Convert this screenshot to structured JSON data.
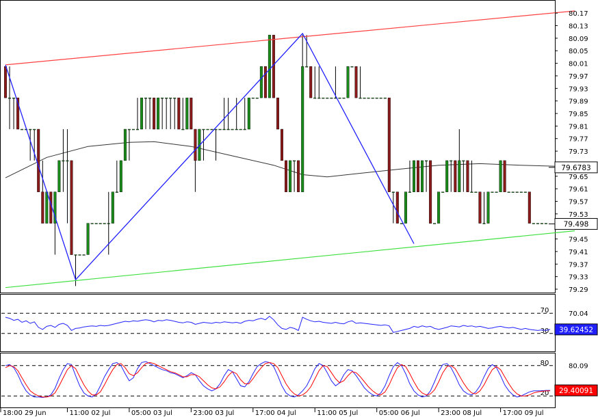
{
  "chart_data": {
    "type": "candlestick",
    "colors": {
      "bull": "#1a8a1a",
      "bear": "#8b1a1a",
      "wick": "#000000",
      "upper_channel": "#ff4040",
      "lower_channel": "#40e040",
      "zigzag": "#2020ff",
      "moving_average": "#333333",
      "rsi": "#2020ff",
      "stoch_k": "#2020ff",
      "stoch_d": "#ff0000"
    },
    "main_panel": {
      "ylim": [
        79.29,
        80.19
      ],
      "y_ticks": [
        "80.17",
        "80.13",
        "80.09",
        "80.05",
        "80.01",
        "79.97",
        "79.93",
        "79.89",
        "79.85",
        "79.81",
        "79.77",
        "79.73",
        "79.69",
        "79.65",
        "79.61",
        "79.57",
        "79.53",
        "79.49",
        "79.45",
        "79.41",
        "79.37",
        "79.33",
        "79.29"
      ],
      "price_labels": [
        {
          "label": "79.6783",
          "value": 79.6783,
          "style": "ma"
        },
        {
          "label": "79.498",
          "value": 79.498,
          "style": "last"
        }
      ],
      "upper_channel": [
        [
          0,
          80.005
        ],
        [
          138,
          80.177
        ]
      ],
      "lower_channel": [
        [
          0,
          79.295
        ],
        [
          138,
          79.476
        ]
      ],
      "zigzag": [
        [
          0,
          80.005
        ],
        [
          17,
          79.32
        ],
        [
          72,
          80.105
        ],
        [
          99,
          79.435
        ]
      ],
      "moving_average_points": [
        [
          0,
          79.645
        ],
        [
          10,
          79.71
        ],
        [
          20,
          79.745
        ],
        [
          30,
          79.758
        ],
        [
          36,
          79.76
        ],
        [
          45,
          79.745
        ],
        [
          55,
          79.715
        ],
        [
          65,
          79.685
        ],
        [
          72,
          79.655
        ],
        [
          78,
          79.648
        ],
        [
          85,
          79.658
        ],
        [
          95,
          79.672
        ],
        [
          105,
          79.685
        ],
        [
          115,
          79.69
        ],
        [
          125,
          79.685
        ],
        [
          138,
          79.68
        ]
      ],
      "candles": [
        [
          80.0,
          80.0,
          79.9,
          79.9
        ],
        [
          79.9,
          80.0,
          79.8,
          79.9
        ],
        [
          79.9,
          79.9,
          79.8,
          79.9
        ],
        [
          79.9,
          79.9,
          79.8,
          79.8
        ],
        [
          79.8,
          79.8,
          79.8,
          79.8
        ],
        [
          79.8,
          79.8,
          79.8,
          79.8
        ],
        [
          79.8,
          79.8,
          79.7,
          79.8
        ],
        [
          79.8,
          79.8,
          79.7,
          79.8
        ],
        [
          79.8,
          79.8,
          79.6,
          79.6
        ],
        [
          79.6,
          79.7,
          79.5,
          79.5
        ],
        [
          79.5,
          79.6,
          79.5,
          79.6
        ],
        [
          79.6,
          79.6,
          79.5,
          79.5
        ],
        [
          79.5,
          79.6,
          79.4,
          79.6
        ],
        [
          79.6,
          79.7,
          79.6,
          79.7
        ],
        [
          79.7,
          79.8,
          79.6,
          79.7
        ],
        [
          79.7,
          79.8,
          79.5,
          79.7
        ],
        [
          79.7,
          79.7,
          79.4,
          79.4
        ],
        [
          79.4,
          79.4,
          79.3,
          79.4
        ],
        [
          79.4,
          79.4,
          79.4,
          79.4
        ],
        [
          79.4,
          79.4,
          79.4,
          79.4
        ],
        [
          79.4,
          79.5,
          79.4,
          79.5
        ],
        [
          79.5,
          79.5,
          79.5,
          79.5
        ],
        [
          79.5,
          79.5,
          79.5,
          79.5
        ],
        [
          79.5,
          79.5,
          79.5,
          79.5
        ],
        [
          79.5,
          79.5,
          79.5,
          79.5
        ],
        [
          79.5,
          79.6,
          79.4,
          79.5
        ],
        [
          79.5,
          79.6,
          79.5,
          79.6
        ],
        [
          79.6,
          79.7,
          79.6,
          79.6
        ],
        [
          79.6,
          79.7,
          79.6,
          79.7
        ],
        [
          79.7,
          79.8,
          79.7,
          79.8
        ],
        [
          79.8,
          79.8,
          79.7,
          79.8
        ],
        [
          79.8,
          79.8,
          79.8,
          79.8
        ],
        [
          79.8,
          79.9,
          79.8,
          79.8
        ],
        [
          79.8,
          79.9,
          79.8,
          79.9
        ],
        [
          79.9,
          79.9,
          79.8,
          79.9
        ],
        [
          79.9,
          79.9,
          79.8,
          79.9
        ],
        [
          79.9,
          79.9,
          79.8,
          79.8
        ],
        [
          79.8,
          79.9,
          79.8,
          79.9
        ],
        [
          79.9,
          79.9,
          79.8,
          79.9
        ],
        [
          79.9,
          79.9,
          79.8,
          79.9
        ],
        [
          79.9,
          79.9,
          79.8,
          79.9
        ],
        [
          79.9,
          79.9,
          79.8,
          79.9
        ],
        [
          79.9,
          79.9,
          79.8,
          79.8
        ],
        [
          79.8,
          79.9,
          79.8,
          79.8
        ],
        [
          79.8,
          79.9,
          79.8,
          79.9
        ],
        [
          79.9,
          79.9,
          79.8,
          79.8
        ],
        [
          79.8,
          79.8,
          79.6,
          79.7
        ],
        [
          79.7,
          79.8,
          79.7,
          79.8
        ],
        [
          79.8,
          79.8,
          79.7,
          79.8
        ],
        [
          79.8,
          79.8,
          79.8,
          79.8
        ],
        [
          79.8,
          79.8,
          79.8,
          79.8
        ],
        [
          79.8,
          79.8,
          79.7,
          79.8
        ],
        [
          79.8,
          79.8,
          79.8,
          79.8
        ],
        [
          79.8,
          79.9,
          79.8,
          79.8
        ],
        [
          79.8,
          79.9,
          79.8,
          79.8
        ],
        [
          79.8,
          79.8,
          79.8,
          79.8
        ],
        [
          79.8,
          79.9,
          79.8,
          79.8
        ],
        [
          79.8,
          79.8,
          79.8,
          79.8
        ],
        [
          79.8,
          79.9,
          79.8,
          79.8
        ],
        [
          79.8,
          79.9,
          79.8,
          79.9
        ],
        [
          79.9,
          79.9,
          79.9,
          79.9
        ],
        [
          79.9,
          79.9,
          79.9,
          79.9
        ],
        [
          79.9,
          80.0,
          79.9,
          80.0
        ],
        [
          80.0,
          80.0,
          79.9,
          79.9
        ],
        [
          79.9,
          80.1,
          79.9,
          80.1
        ],
        [
          80.1,
          80.1,
          79.9,
          79.9
        ],
        [
          79.9,
          79.9,
          79.8,
          79.8
        ],
        [
          79.8,
          79.8,
          79.7,
          79.7
        ],
        [
          79.7,
          79.7,
          79.6,
          79.6
        ],
        [
          79.6,
          79.7,
          79.6,
          79.7
        ],
        [
          79.7,
          79.7,
          79.6,
          79.7
        ],
        [
          79.7,
          79.7,
          79.6,
          79.6
        ],
        [
          79.6,
          80.1,
          79.6,
          80.0
        ],
        [
          80.0,
          80.1,
          80.0,
          80.0
        ],
        [
          80.0,
          80.0,
          79.9,
          79.9
        ],
        [
          79.9,
          80.0,
          79.9,
          79.9
        ],
        [
          79.9,
          80.0,
          79.9,
          79.9
        ],
        [
          79.9,
          79.9,
          79.9,
          79.9
        ],
        [
          79.9,
          79.9,
          79.9,
          79.9
        ],
        [
          79.9,
          79.9,
          79.9,
          79.9
        ],
        [
          79.9,
          80.0,
          79.9,
          79.9
        ],
        [
          79.9,
          79.9,
          79.9,
          79.9
        ],
        [
          79.9,
          79.9,
          79.9,
          79.9
        ],
        [
          79.9,
          80.0,
          79.9,
          80.0
        ],
        [
          80.0,
          80.0,
          80.0,
          80.0
        ],
        [
          80.0,
          80.0,
          79.9,
          79.9
        ],
        [
          79.9,
          80.0,
          79.9,
          79.9
        ],
        [
          79.9,
          79.9,
          79.9,
          79.9
        ],
        [
          79.9,
          79.9,
          79.9,
          79.9
        ],
        [
          79.9,
          79.9,
          79.9,
          79.9
        ],
        [
          79.9,
          79.9,
          79.9,
          79.9
        ],
        [
          79.9,
          79.9,
          79.9,
          79.9
        ],
        [
          79.9,
          79.9,
          79.9,
          79.9
        ],
        [
          79.9,
          79.9,
          79.6,
          79.6
        ],
        [
          79.6,
          79.6,
          79.5,
          79.6
        ],
        [
          79.6,
          79.6,
          79.5,
          79.5
        ],
        [
          79.5,
          79.5,
          79.5,
          79.5
        ],
        [
          79.5,
          79.6,
          79.5,
          79.6
        ],
        [
          79.6,
          79.7,
          79.6,
          79.6
        ],
        [
          79.6,
          79.7,
          79.6,
          79.7
        ],
        [
          79.7,
          79.7,
          79.6,
          79.6
        ],
        [
          79.6,
          79.7,
          79.6,
          79.7
        ],
        [
          79.7,
          79.7,
          79.6,
          79.7
        ],
        [
          79.7,
          79.7,
          79.5,
          79.5
        ],
        [
          79.5,
          79.5,
          79.5,
          79.5
        ],
        [
          79.5,
          79.6,
          79.5,
          79.6
        ],
        [
          79.6,
          79.6,
          79.6,
          79.6
        ],
        [
          79.6,
          79.7,
          79.6,
          79.7
        ],
        [
          79.7,
          79.7,
          79.6,
          79.7
        ],
        [
          79.7,
          79.7,
          79.6,
          79.6
        ],
        [
          79.6,
          79.8,
          79.6,
          79.7
        ],
        [
          79.7,
          79.7,
          79.6,
          79.7
        ],
        [
          79.7,
          79.7,
          79.6,
          79.6
        ],
        [
          79.6,
          79.7,
          79.6,
          79.6
        ],
        [
          79.6,
          79.6,
          79.6,
          79.6
        ],
        [
          79.6,
          79.6,
          79.5,
          79.5
        ],
        [
          79.5,
          79.6,
          79.5,
          79.5
        ],
        [
          79.5,
          79.6,
          79.5,
          79.6
        ],
        [
          79.6,
          79.6,
          79.6,
          79.6
        ],
        [
          79.6,
          79.6,
          79.6,
          79.6
        ],
        [
          79.6,
          79.7,
          79.6,
          79.7
        ],
        [
          79.7,
          79.7,
          79.6,
          79.6
        ],
        [
          79.6,
          79.6,
          79.6,
          79.6
        ],
        [
          79.6,
          79.6,
          79.6,
          79.6
        ],
        [
          79.6,
          79.6,
          79.6,
          79.6
        ],
        [
          79.6,
          79.6,
          79.6,
          79.6
        ],
        [
          79.6,
          79.6,
          79.6,
          79.6
        ],
        [
          79.6,
          79.6,
          79.5,
          79.5
        ],
        [
          79.5,
          79.5,
          79.5,
          79.5
        ],
        [
          79.5,
          79.5,
          79.5,
          79.5
        ],
        [
          79.5,
          79.5,
          79.5,
          79.5
        ],
        [
          79.5,
          79.5,
          79.5,
          79.5
        ]
      ]
    },
    "rsi_panel": {
      "ylim": [
        0,
        100
      ],
      "levels": [
        70,
        30
      ],
      "level_labels": [
        "70",
        "30"
      ],
      "y_ticks": [
        "70.04"
      ],
      "current_label": "39.62452",
      "values": [
        62,
        60,
        56,
        58,
        52,
        55,
        50,
        53,
        42,
        38,
        44,
        46,
        42,
        48,
        50,
        46,
        36,
        40,
        41,
        43,
        44,
        45,
        44,
        46,
        45,
        46,
        48,
        50,
        52,
        54,
        53,
        55,
        54,
        56,
        57,
        56,
        53,
        56,
        55,
        57,
        56,
        54,
        52,
        51,
        53,
        52,
        48,
        50,
        52,
        51,
        50,
        52,
        51,
        53,
        52,
        51,
        52,
        50,
        54,
        56,
        55,
        58,
        60,
        57,
        64,
        57,
        47,
        40,
        38,
        42,
        40,
        36,
        62,
        58,
        55,
        53,
        54,
        52,
        51,
        50,
        52,
        50,
        49,
        53,
        55,
        50,
        51,
        50,
        49,
        48,
        47,
        46,
        47,
        45,
        32,
        34,
        36,
        38,
        40,
        44,
        42,
        45,
        43,
        44,
        40,
        38,
        40,
        42,
        45,
        44,
        43,
        46,
        44,
        45,
        43,
        44,
        42,
        40,
        41,
        43,
        44,
        42,
        41,
        42,
        40,
        38,
        40,
        38,
        37,
        36,
        37,
        36,
        38
      ],
      "extra_series_note": ""
    },
    "stoch_panel": {
      "ylim": [
        0,
        100
      ],
      "levels": [
        80,
        20
      ],
      "level_labels": [
        "80",
        "20"
      ],
      "y_ticks": [
        "80.09"
      ],
      "current_label": "29.40091",
      "k": [
        80,
        82,
        76,
        62,
        44,
        30,
        22,
        18,
        18,
        17,
        18,
        22,
        35,
        55,
        72,
        84,
        82,
        60,
        40,
        26,
        20,
        18,
        24,
        40,
        58,
        72,
        84,
        86,
        80,
        64,
        50,
        56,
        74,
        86,
        88,
        84,
        80,
        76,
        72,
        70,
        66,
        64,
        60,
        56,
        60,
        66,
        62,
        50,
        40,
        34,
        30,
        34,
        44,
        60,
        72,
        68,
        54,
        40,
        38,
        48,
        64,
        78,
        84,
        88,
        86,
        78,
        60,
        40,
        26,
        20,
        18,
        22,
        30,
        40,
        56,
        74,
        84,
        80,
        66,
        50,
        40,
        46,
        62,
        72,
        70,
        60,
        48,
        36,
        28,
        22,
        20,
        26,
        40,
        60,
        78,
        86,
        80,
        64,
        44,
        30,
        22,
        18,
        20,
        30,
        48,
        68,
        82,
        84,
        76,
        60,
        42,
        30,
        24,
        22,
        28,
        40,
        58,
        74,
        82,
        76,
        60,
        42,
        30,
        22,
        18,
        20,
        24,
        28,
        30,
        30,
        30,
        31,
        31
      ],
      "d": [
        76,
        80,
        78,
        70,
        56,
        42,
        30,
        24,
        20,
        18,
        18,
        20,
        26,
        40,
        56,
        72,
        80,
        74,
        58,
        42,
        30,
        22,
        22,
        28,
        42,
        58,
        72,
        82,
        84,
        76,
        64,
        60,
        66,
        76,
        84,
        86,
        84,
        80,
        76,
        72,
        68,
        66,
        62,
        58,
        58,
        62,
        62,
        58,
        50,
        42,
        36,
        34,
        38,
        48,
        60,
        68,
        64,
        52,
        44,
        44,
        54,
        66,
        76,
        84,
        86,
        84,
        76,
        60,
        44,
        32,
        24,
        20,
        22,
        28,
        38,
        54,
        70,
        80,
        78,
        66,
        54,
        46,
        50,
        60,
        68,
        66,
        58,
        48,
        38,
        30,
        24,
        22,
        28,
        42,
        60,
        76,
        82,
        78,
        64,
        48,
        34,
        26,
        22,
        24,
        32,
        48,
        66,
        78,
        80,
        74,
        60,
        46,
        34,
        26,
        24,
        30,
        42,
        58,
        72,
        78,
        72,
        58,
        44,
        32,
        24,
        20,
        20,
        22,
        26,
        28,
        29,
        30,
        30
      ]
    },
    "x_ticks": [
      {
        "label": "18:00 29 Jun",
        "index": 0
      },
      {
        "label": "11:00 02 Jul",
        "index": 15
      },
      {
        "label": "05:00 03 Jul",
        "index": 30
      },
      {
        "label": "23:00 03 Jul",
        "index": 45
      },
      {
        "label": "17:00 04 Jul",
        "index": 60
      },
      {
        "label": "11:00 05 Jul",
        "index": 75
      },
      {
        "label": "05:00 06 Jul",
        "index": 90
      },
      {
        "label": "23:00 08 Jul",
        "index": 105
      },
      {
        "label": "17:00 09 Jul",
        "index": 120
      }
    ]
  }
}
